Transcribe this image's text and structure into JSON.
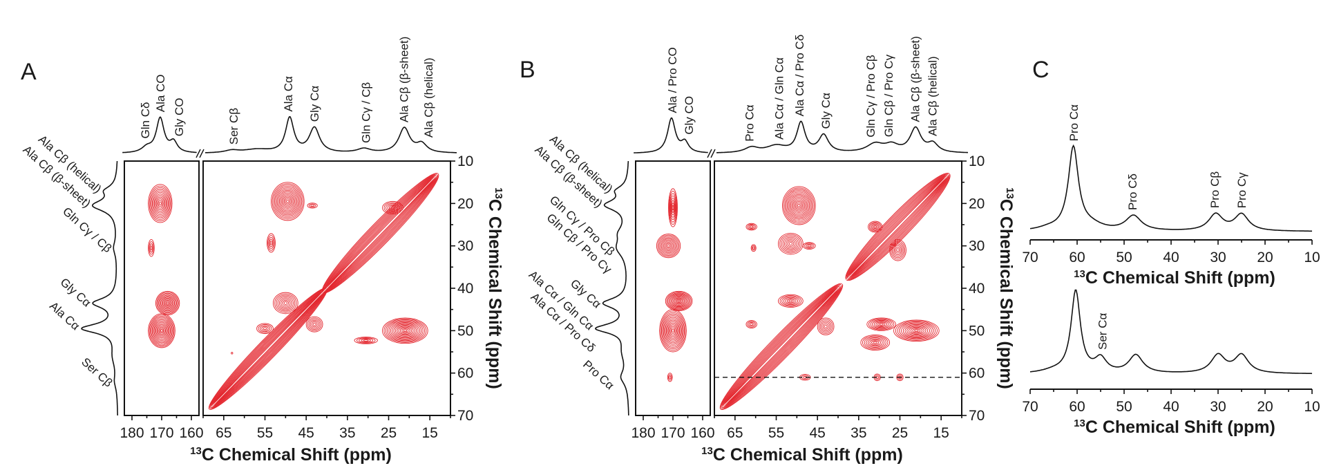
{
  "figure": {
    "panel_labels": [
      "A",
      "B",
      "C"
    ]
  },
  "colors": {
    "contour": "#e3232b",
    "trace": "#111111",
    "axis": "#111111"
  },
  "chart_data": [
    {
      "panel": "A",
      "type": "contour",
      "xlabel_sup": "13",
      "xlabel": "C Chemical Shift (ppm)",
      "ylabel_sup": "13",
      "ylabel": "C Chemical Shift (ppm)",
      "xlim_carbonyl": [
        183.5,
        157.5
      ],
      "xlim": [
        70,
        10
      ],
      "ylim": [
        10,
        70
      ],
      "xticks_carbonyl": [
        180,
        170,
        160
      ],
      "xticks": [
        65,
        55,
        45,
        35,
        25,
        15
      ],
      "yticks": [
        10,
        20,
        30,
        40,
        50,
        60,
        70
      ],
      "top_labels": [
        {
          "text": "Gln Cδ",
          "ppm": 175.6
        },
        {
          "text": "Ala CO",
          "ppm": 170.5
        },
        {
          "text": "Gly CO",
          "ppm": 164.2
        },
        {
          "text": "Ser Cβ",
          "ppm": 62.6
        },
        {
          "text": "Ala Cα",
          "ppm": 49.4
        },
        {
          "text": "Gly Cα",
          "ppm": 43.0
        },
        {
          "text": "Gln Cγ / Cβ",
          "ppm": 30.5
        },
        {
          "text": "Ala Cβ (β-sheet)",
          "ppm": 21.3
        },
        {
          "text": "Ala Cβ (helical)",
          "ppm": 15.4
        }
      ],
      "left_labels": [
        {
          "text": "Ala Cβ (helical)",
          "ppm": 17.0
        },
        {
          "text": "Ala Cβ (β-sheet)",
          "ppm": 20.4
        },
        {
          "text": "Gln Cγ / Cβ",
          "ppm": 31.0
        },
        {
          "text": "Gly Cα",
          "ppm": 43.8
        },
        {
          "text": "Ala Cα",
          "ppm": 49.3
        },
        {
          "text": "Ser Cβ",
          "ppm": 62.7
        }
      ],
      "projection_top_carbonyl": [
        [
          170.5,
          1.0,
          1.6
        ],
        [
          166,
          0.3,
          1.5
        ],
        [
          175,
          0.15,
          2
        ]
      ],
      "projection_top": [
        [
          49,
          1.0,
          1.2
        ],
        [
          43,
          0.72,
          1.5
        ],
        [
          21.2,
          0.72,
          1.6
        ],
        [
          17,
          0.25,
          1.5
        ],
        [
          31,
          0.12,
          2
        ],
        [
          57,
          0.1,
          4
        ],
        [
          63,
          0.07,
          2
        ]
      ],
      "projection_left": [
        [
          20.5,
          0.7,
          1.6
        ],
        [
          17,
          0.3,
          1.3
        ],
        [
          30.5,
          0.1,
          2
        ],
        [
          43.5,
          0.68,
          1.4
        ],
        [
          49.5,
          1.0,
          1.3
        ],
        [
          56,
          0.12,
          3
        ],
        [
          62,
          0.07,
          2
        ]
      ],
      "cross_peaks_carbonyl": [
        {
          "x": 170.5,
          "y": 20,
          "rx": 4,
          "ry": 4.5,
          "levels": 12
        },
        {
          "x": 173.5,
          "y": 30.5,
          "rx": 1,
          "ry": 2,
          "levels": 4
        },
        {
          "x": 168,
          "y": 43.5,
          "rx": 4,
          "ry": 2.8,
          "levels": 12
        },
        {
          "x": 170,
          "y": 50,
          "rx": 4.5,
          "ry": 4,
          "levels": 14
        }
      ],
      "cross_peaks": [
        {
          "x": 49.5,
          "y": 19.5,
          "rx": 4,
          "ry": 4.5,
          "levels": 14
        },
        {
          "x": 43.5,
          "y": 20.5,
          "rx": 1.2,
          "ry": 0.6,
          "levels": 3
        },
        {
          "x": 53.5,
          "y": 29.3,
          "rx": 1,
          "ry": 2.2,
          "levels": 5
        },
        {
          "x": 21,
          "y": 50,
          "rx": 5.5,
          "ry": 3,
          "levels": 14
        },
        {
          "x": 30.5,
          "y": 52.3,
          "rx": 2.8,
          "ry": 0.8,
          "levels": 5
        },
        {
          "x": 50,
          "y": 43.5,
          "rx": 3,
          "ry": 2.5,
          "levels": 8
        },
        {
          "x": 43,
          "y": 48.5,
          "rx": 2,
          "ry": 1.8,
          "levels": 6
        },
        {
          "x": 55,
          "y": 49.5,
          "rx": 2,
          "ry": 1.2,
          "levels": 5
        },
        {
          "x": 24,
          "y": 21,
          "rx": 2.5,
          "ry": 1.5,
          "levels": 6
        },
        {
          "x": 63,
          "y": 55.3,
          "rx": 0.2,
          "ry": 0.2,
          "levels": 1
        }
      ],
      "diagonal": [
        {
          "from": 68.5,
          "to": 40,
          "width": 2.3,
          "levels": 10
        },
        {
          "from": 41,
          "to": 13,
          "width": 2.6,
          "levels": 10
        }
      ]
    },
    {
      "panel": "B",
      "type": "contour",
      "xlabel_sup": "13",
      "xlabel": "C Chemical Shift (ppm)",
      "ylabel_sup": "13",
      "ylabel": "C Chemical Shift (ppm)",
      "xlim_carbonyl": [
        183.5,
        157.5
      ],
      "xlim": [
        70,
        10
      ],
      "ylim": [
        10,
        70
      ],
      "xticks_carbonyl": [
        180,
        170,
        160
      ],
      "xticks": [
        65,
        55,
        45,
        35,
        25,
        15
      ],
      "yticks": [
        10,
        20,
        30,
        40,
        50,
        60,
        70
      ],
      "reference_line_ppm": 61,
      "top_labels": [
        {
          "text": "Ala  / Pro CO",
          "ppm": 170.2
        },
        {
          "text": "Gly CO",
          "ppm": 164.7
        },
        {
          "text": "Pro Cα",
          "ppm": 61.5
        },
        {
          "text": "Ala Cα / Gln Cα",
          "ppm": 54.3
        },
        {
          "text": "Ala Cα / Pro Cδ",
          "ppm": 49.4
        },
        {
          "text": "Gly Cα",
          "ppm": 43.0
        },
        {
          "text": "Gln Cγ / Pro Cβ",
          "ppm": 32.1
        },
        {
          "text": "Gln Cβ / Pro Cγ",
          "ppm": 27.8
        },
        {
          "text": "Ala Cβ (β-sheet)",
          "ppm": 21.3
        },
        {
          "text": "Ala Cβ (helical)",
          "ppm": 17.1
        }
      ],
      "left_labels": [
        {
          "text": "Ala Cβ (helical)",
          "ppm": 17.0
        },
        {
          "text": "Ala Cβ (β-sheet)",
          "ppm": 20.4
        },
        {
          "text": "Gln Cγ / Pro Cβ",
          "ppm": 31.7
        },
        {
          "text": "Gln Cβ / Pro Cγ",
          "ppm": 35.9
        },
        {
          "text": "Gly Cα",
          "ppm": 44.1
        },
        {
          "text": "Ala Cα / Gln Cα",
          "ppm": 49.3
        },
        {
          "text": "Ala Cα / Pro Cδ",
          "ppm": 54.5
        },
        {
          "text": "Pro Cα",
          "ppm": 63.3
        }
      ],
      "projection_top_carbonyl": [
        [
          170.5,
          1.0,
          1.6
        ],
        [
          166,
          0.3,
          1.5
        ]
      ],
      "projection_top": [
        [
          61,
          0.15,
          2
        ],
        [
          55,
          0.2,
          3
        ],
        [
          49,
          0.85,
          1.2
        ],
        [
          43.5,
          0.5,
          1.4
        ],
        [
          31,
          0.25,
          2.5
        ],
        [
          27,
          0.2,
          2
        ],
        [
          21.2,
          0.7,
          1.6
        ],
        [
          17,
          0.25,
          1.5
        ]
      ],
      "projection_left": [
        [
          20.4,
          0.65,
          1.5
        ],
        [
          17,
          0.3,
          1.3
        ],
        [
          30.5,
          0.3,
          2.5
        ],
        [
          27,
          0.2,
          2
        ],
        [
          43.5,
          0.7,
          1.4
        ],
        [
          49.5,
          0.9,
          1.3
        ],
        [
          61,
          0.2,
          2
        ],
        [
          55,
          0.15,
          3
        ]
      ],
      "cross_peaks_carbonyl": [
        {
          "x": 170,
          "y": 21,
          "rx": 1.5,
          "ry": 4.5,
          "levels": 8
        },
        {
          "x": 171.5,
          "y": 30,
          "rx": 4,
          "ry": 2.8,
          "levels": 10
        },
        {
          "x": 168,
          "y": 43,
          "rx": 4.5,
          "ry": 2.3,
          "levels": 12
        },
        {
          "x": 170,
          "y": 50,
          "rx": 4.5,
          "ry": 5,
          "levels": 14
        },
        {
          "x": 171,
          "y": 61,
          "rx": 0.8,
          "ry": 1,
          "levels": 3
        }
      ],
      "cross_peaks": [
        {
          "x": 49.5,
          "y": 20.5,
          "rx": 4,
          "ry": 4.5,
          "levels": 14
        },
        {
          "x": 61,
          "y": 25.5,
          "rx": 1.3,
          "ry": 0.8,
          "levels": 4
        },
        {
          "x": 60.5,
          "y": 30.5,
          "rx": 0.6,
          "ry": 0.8,
          "levels": 3
        },
        {
          "x": 51.5,
          "y": 29.5,
          "rx": 3,
          "ry": 2.5,
          "levels": 8
        },
        {
          "x": 47,
          "y": 30,
          "rx": 1.5,
          "ry": 0.8,
          "levels": 4
        },
        {
          "x": 61,
          "y": 48.5,
          "rx": 1.3,
          "ry": 0.9,
          "levels": 4
        },
        {
          "x": 48,
          "y": 61,
          "rx": 1.3,
          "ry": 0.7,
          "levels": 3
        },
        {
          "x": 30.5,
          "y": 61,
          "rx": 0.8,
          "ry": 0.8,
          "levels": 3
        },
        {
          "x": 25,
          "y": 61,
          "rx": 0.8,
          "ry": 0.8,
          "levels": 3
        },
        {
          "x": 29.5,
          "y": 48.5,
          "rx": 3.5,
          "ry": 1.5,
          "levels": 8
        },
        {
          "x": 21,
          "y": 50,
          "rx": 5.5,
          "ry": 2.5,
          "levels": 12
        },
        {
          "x": 31,
          "y": 52.8,
          "rx": 3.5,
          "ry": 1.8,
          "levels": 8
        },
        {
          "x": 25.5,
          "y": 31,
          "rx": 2,
          "ry": 2.5,
          "levels": 7
        },
        {
          "x": 31,
          "y": 25.5,
          "rx": 1.7,
          "ry": 1.3,
          "levels": 6
        },
        {
          "x": 51.5,
          "y": 43,
          "rx": 3,
          "ry": 1.5,
          "levels": 7
        },
        {
          "x": 43,
          "y": 49,
          "rx": 2,
          "ry": 2,
          "levels": 6
        }
      ],
      "diagonal": [
        {
          "from": 68.5,
          "to": 39,
          "width": 2.6,
          "levels": 10
        },
        {
          "from": 38,
          "to": 13,
          "width": 2.8,
          "levels": 10
        }
      ]
    },
    {
      "panel": "C",
      "type": "line",
      "plots": [
        {
          "xlabel_sup": "13",
          "xlabel": "C Chemical Shift (ppm)",
          "xlim": [
            70,
            10
          ],
          "xticks": [
            70,
            60,
            50,
            40,
            30,
            20,
            10
          ],
          "peaks": [
            [
              60.8,
              1.0,
              1.3
            ],
            [
              48,
              0.18,
              2
            ],
            [
              30.5,
              0.2,
              1.8
            ],
            [
              25,
              0.2,
              1.8
            ],
            [
              57,
              0.06,
              3
            ],
            [
              66,
              0.03,
              3
            ]
          ],
          "labels": [
            {
              "text": "Pro Cα",
              "ppm": 60.7
            },
            {
              "text": "Pro Cδ",
              "ppm": 48.2
            },
            {
              "text": "Pro Cβ",
              "ppm": 30.7
            },
            {
              "text": "Pro Cγ",
              "ppm": 25.0
            }
          ]
        },
        {
          "xlabel_sup": "13",
          "xlabel": "C Chemical Shift (ppm)",
          "xlim": [
            70,
            10
          ],
          "xticks": [
            70,
            60,
            50,
            40,
            30,
            20,
            10
          ],
          "peaks": [
            [
              60.3,
              1.0,
              1.2
            ],
            [
              55,
              0.17,
              1.5
            ],
            [
              47.5,
              0.22,
              1.8
            ],
            [
              30,
              0.22,
              1.8
            ],
            [
              25,
              0.22,
              1.8
            ],
            [
              65,
              0.03,
              3
            ]
          ],
          "labels": [
            {
              "text": "Ser Cα",
              "ppm": 54.6
            }
          ]
        }
      ]
    }
  ]
}
